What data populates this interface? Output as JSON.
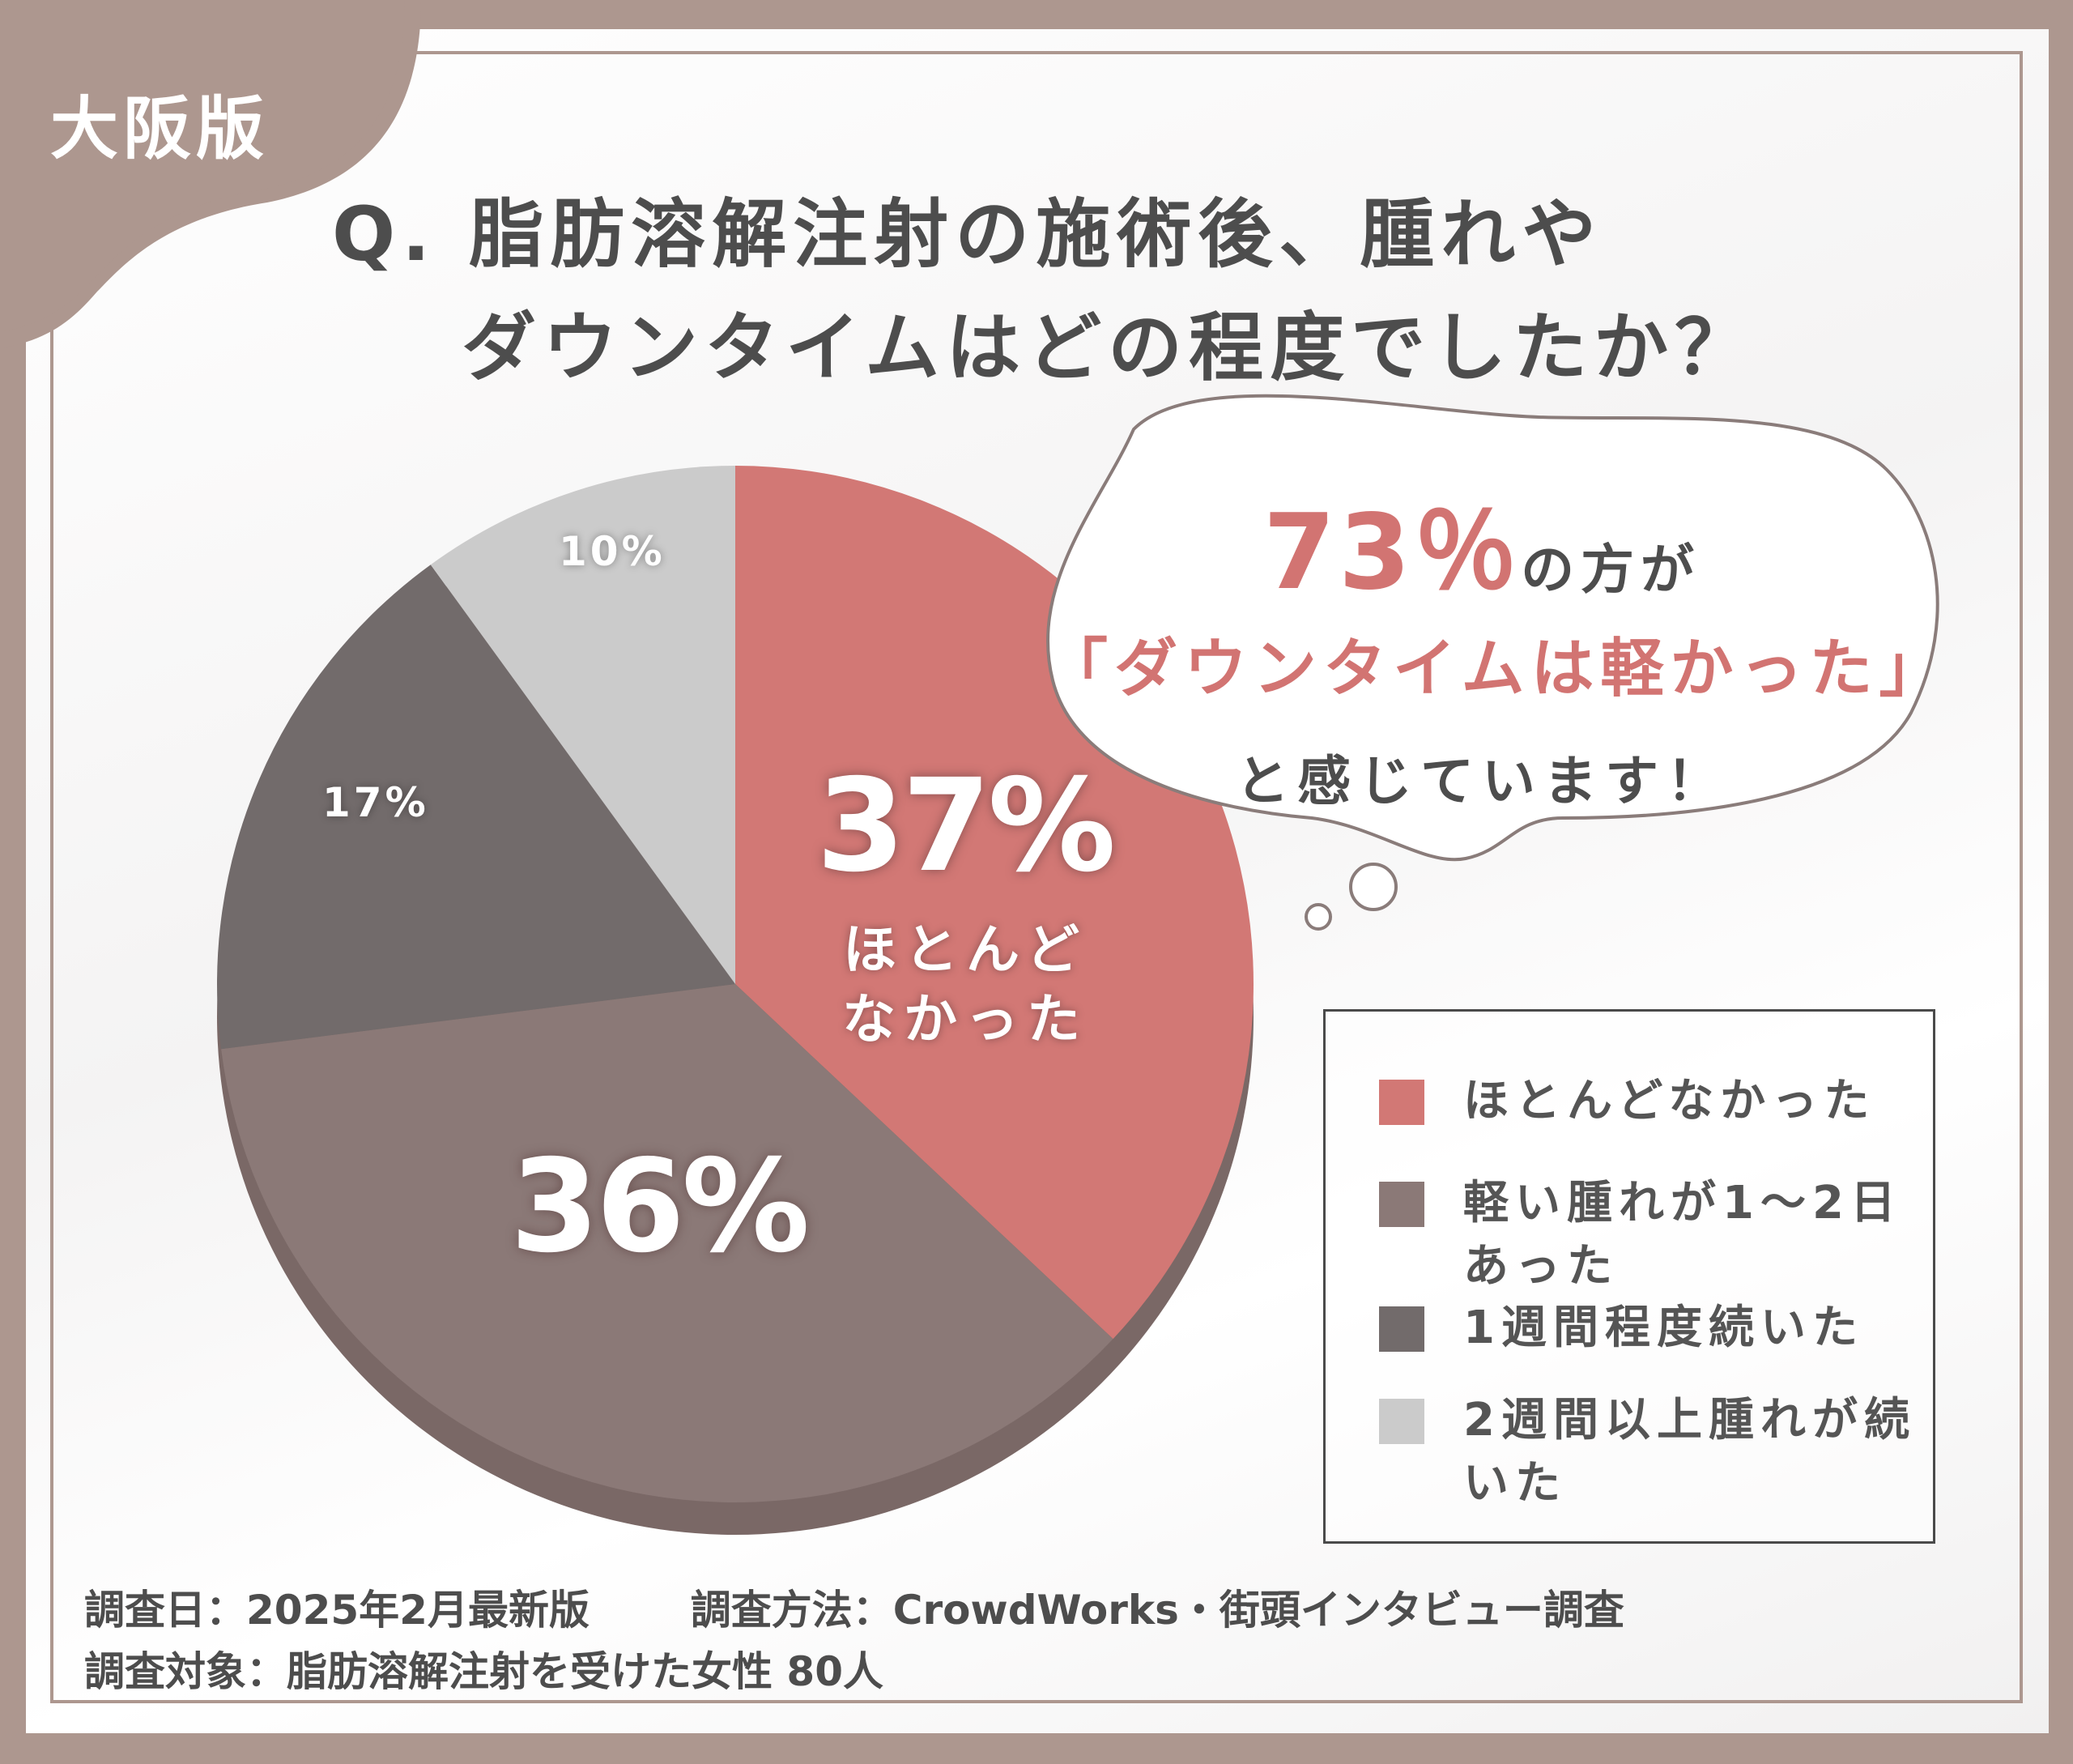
{
  "edition": "大阪版",
  "title": {
    "line1": "Q. 脂肪溶解注射の施術後、腫れや",
    "line2": "ダウンタイムはどの程度でしたか？"
  },
  "callout": {
    "percent": "73％",
    "suffix": "の方が",
    "line2": "「ダウンタイムは軽かった」",
    "line3": "と感じています！"
  },
  "chart_data": {
    "type": "pie",
    "slices": [
      {
        "label": "ほとんどなかった",
        "value": 37,
        "color": "#d27875",
        "label_text": "37%",
        "inside_label": "ほとんど\nなかった"
      },
      {
        "label": "軽い腫れが1〜2日あった",
        "value": 36,
        "color": "#8b7977",
        "label_text": "36%"
      },
      {
        "label": "1週間程度続いた",
        "value": 17,
        "color": "#726b6b",
        "label_text": "17%"
      },
      {
        "label": "2週間以上腫れが続いた",
        "value": 10,
        "color": "#cbcbcb",
        "label_text": "10%"
      }
    ],
    "legend_position": "bottom-right"
  },
  "legend": [
    {
      "label": "ほとんどなかった",
      "color": "#d27875"
    },
    {
      "label": "軽い腫れが1〜2日あった",
      "color": "#8b7977"
    },
    {
      "label": "1週間程度続いた",
      "color": "#726b6b"
    },
    {
      "label": "2週間以上腫れが続いた",
      "color": "#cbcbcb"
    }
  ],
  "footer": {
    "date": "調査日：2025年2月最新版",
    "method": "調査方法：CrowdWorks・街頭インタビュー調査",
    "target": "調査対象：脂肪溶解注射を受けた女性 80人"
  },
  "colors": {
    "frame": "#ad978f",
    "accent": "#d27472",
    "text": "#4d4d4d"
  }
}
